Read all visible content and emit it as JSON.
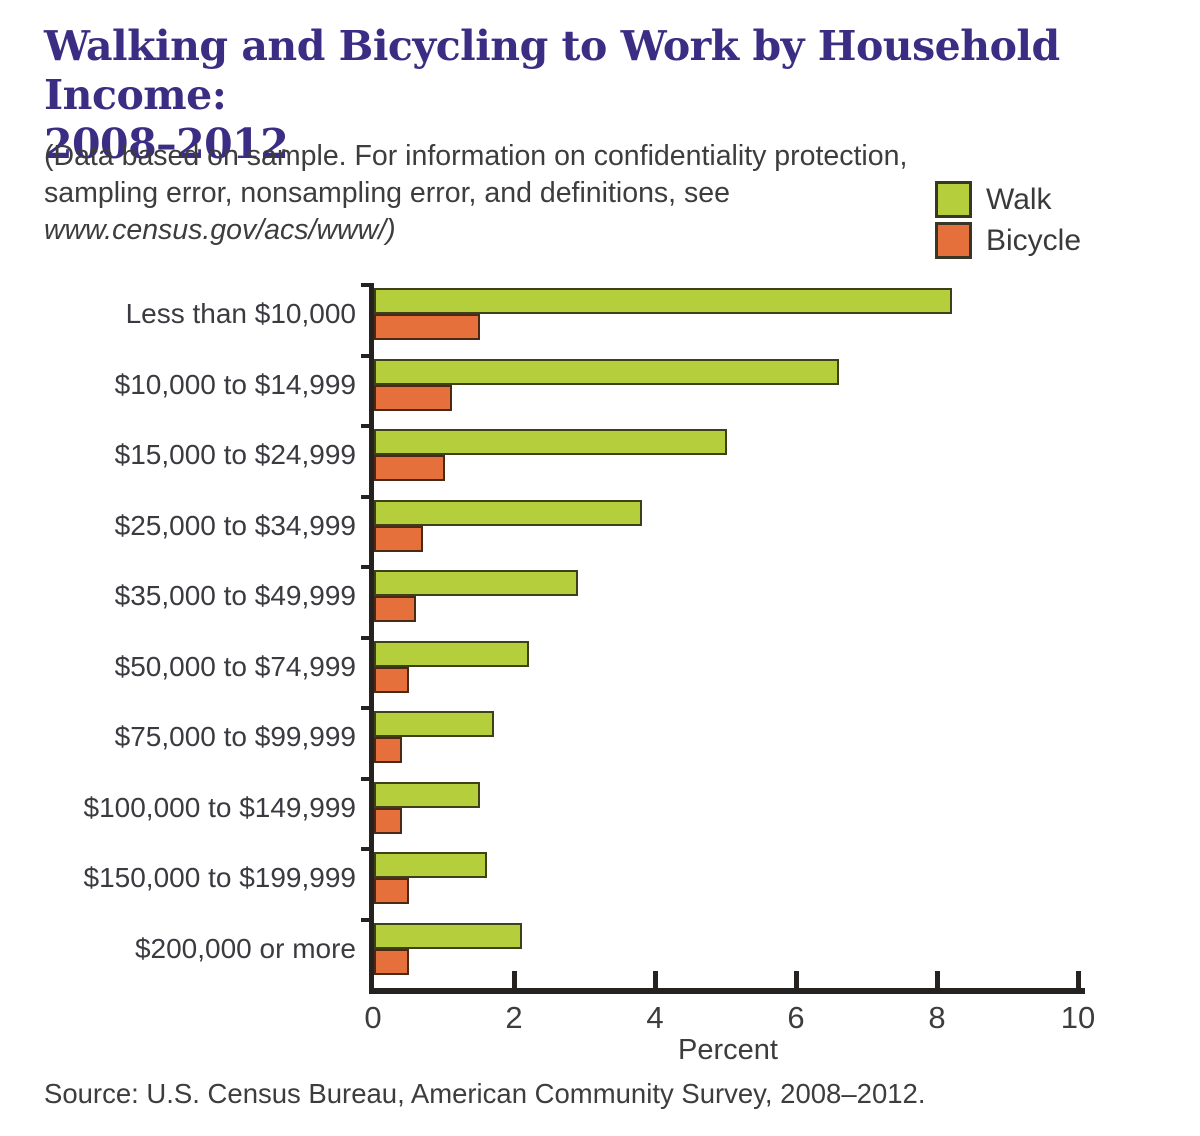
{
  "title": {
    "line1": "Walking and Bicycling to Work by Household Income:",
    "line2": "2008–2012"
  },
  "note": {
    "line1": "(Data based on sample. For information on confidentiality protection,",
    "line2": "sampling error, nonsampling error, and definitions, see",
    "line3": "www.census.gov/acs/www/)"
  },
  "legend": {
    "items": [
      {
        "label": "Walk",
        "color": "#b5ce3b"
      },
      {
        "label": "Bicycle",
        "color": "#e5703c"
      }
    ]
  },
  "chart_data": {
    "type": "bar",
    "orientation": "horizontal",
    "title": "Walking and Bicycling to Work by Household Income: 2008–2012",
    "categories": [
      "Less than $10,000",
      "$10,000 to $14,999",
      "$15,000 to $24,999",
      "$25,000 to $34,999",
      "$35,000 to $49,999",
      "$50,000 to $74,999",
      "$75,000 to $99,999",
      "$100,000 to $149,999",
      "$150,000 to $199,999",
      "$200,000 or more"
    ],
    "series": [
      {
        "name": "Walk",
        "color": "#b5ce3b",
        "values": [
          8.2,
          6.6,
          5.0,
          3.8,
          2.9,
          2.2,
          1.7,
          1.5,
          1.6,
          2.1
        ]
      },
      {
        "name": "Bicycle",
        "color": "#e5703c",
        "values": [
          1.5,
          1.1,
          1.0,
          0.7,
          0.6,
          0.5,
          0.4,
          0.4,
          0.5,
          0.5
        ]
      }
    ],
    "xlabel": "Percent",
    "xlim": [
      0,
      10
    ],
    "xticks": [
      0,
      2,
      4,
      6,
      8,
      10
    ],
    "grid": false,
    "legend_position": "top-right"
  },
  "source": "Source: U.S. Census Bureau, American Community Survey, 2008–2012."
}
